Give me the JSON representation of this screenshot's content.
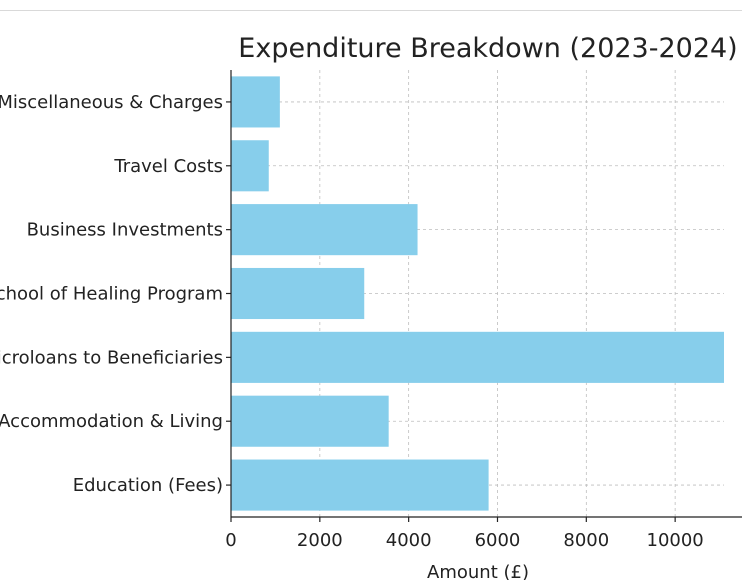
{
  "chart_data": {
    "type": "bar",
    "orientation": "horizontal",
    "title": "Expenditure Breakdown (2023-2024)",
    "xlabel": "Amount (£)",
    "ylabel": "",
    "categories": [
      "Education (Fees)",
      "Accommodation & Living",
      "Microloans to Beneficiaries",
      "School of Healing Program",
      "Business Investments",
      "Travel Costs",
      "Miscellaneous & Charges"
    ],
    "values": [
      5800,
      3550,
      11100,
      3000,
      4200,
      850,
      1100
    ],
    "xlim": [
      0,
      11100
    ],
    "xticks": [
      0,
      2000,
      4000,
      6000,
      8000,
      10000
    ],
    "grid": true,
    "bar_color": "#87ceeb"
  }
}
